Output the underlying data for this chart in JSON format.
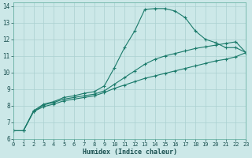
{
  "xlabel": "Humidex (Indice chaleur)",
  "bg_color": "#cce8e8",
  "line_color": "#1a7a6a",
  "grid_color": "#aad0d0",
  "x": [
    0,
    1,
    2,
    3,
    4,
    5,
    6,
    7,
    8,
    9,
    10,
    11,
    12,
    13,
    14,
    15,
    16,
    17,
    18,
    19,
    20,
    21,
    22,
    23
  ],
  "line1": [
    6.5,
    6.5,
    7.7,
    8.1,
    8.25,
    8.5,
    8.6,
    8.75,
    8.85,
    9.2,
    10.3,
    11.5,
    12.5,
    13.8,
    13.85,
    13.85,
    13.7,
    13.3,
    12.5,
    12.0,
    11.8,
    11.5,
    11.5,
    11.2
  ],
  "line2": [
    6.5,
    6.5,
    7.65,
    8.05,
    8.2,
    8.4,
    8.5,
    8.6,
    8.7,
    8.9,
    9.3,
    9.7,
    10.1,
    10.5,
    10.8,
    11.0,
    11.15,
    11.3,
    11.45,
    11.55,
    11.65,
    11.75,
    11.85,
    11.2
  ],
  "line3": [
    6.5,
    6.5,
    7.65,
    7.95,
    8.1,
    8.3,
    8.4,
    8.5,
    8.6,
    8.8,
    9.05,
    9.25,
    9.45,
    9.65,
    9.8,
    9.95,
    10.1,
    10.25,
    10.4,
    10.55,
    10.7,
    10.8,
    10.95,
    11.2
  ],
  "xlim": [
    0,
    23
  ],
  "ylim": [
    6,
    14.2
  ],
  "yticks": [
    6,
    7,
    8,
    9,
    10,
    11,
    12,
    13,
    14
  ],
  "xticks": [
    0,
    1,
    2,
    3,
    4,
    5,
    6,
    7,
    8,
    9,
    10,
    11,
    12,
    13,
    14,
    15,
    16,
    17,
    18,
    19,
    20,
    21,
    22,
    23
  ],
  "markersize": 2.5,
  "linewidth": 0.8
}
